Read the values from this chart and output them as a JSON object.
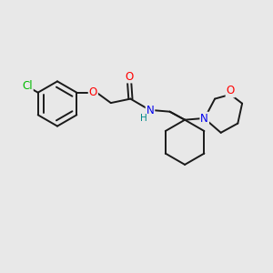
{
  "background_color": "#e8e8e8",
  "bond_color": "#1a1a1a",
  "bond_width": 1.4,
  "atom_colors": {
    "Cl": "#00bb00",
    "O": "#ff0000",
    "N": "#0000ee",
    "H": "#008888",
    "C": "#1a1a1a"
  },
  "font_size": 8.5,
  "fig_size": [
    3.0,
    3.0
  ],
  "dpi": 100,
  "xlim": [
    0,
    10
  ],
  "ylim": [
    0,
    10
  ]
}
